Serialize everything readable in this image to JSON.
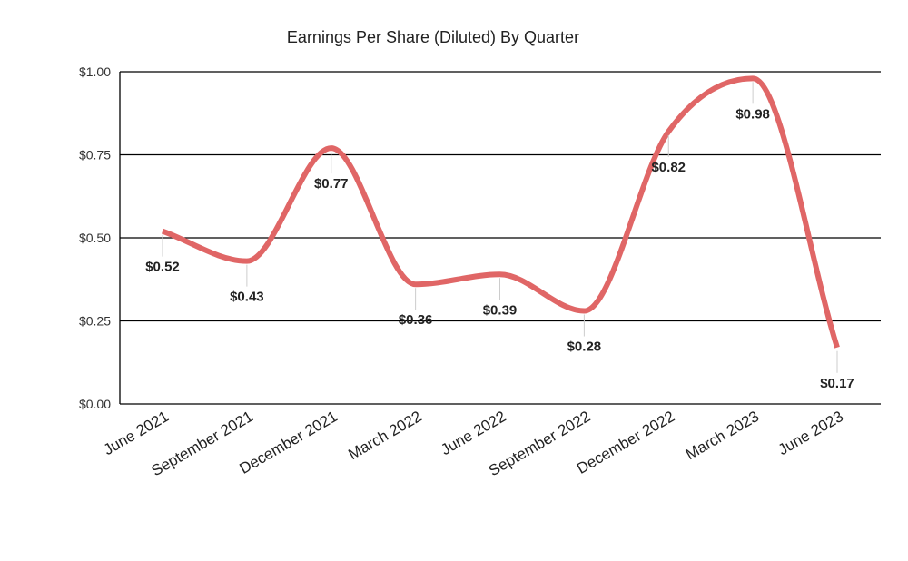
{
  "colors": {
    "series": "#e06666",
    "grid": "#000000",
    "background": "#ffffff"
  },
  "chart_data": {
    "type": "line",
    "title": "Earnings Per Share (Diluted) By Quarter",
    "xlabel": "",
    "ylabel": "",
    "categories": [
      "June 2021",
      "September 2021",
      "December 2021",
      "March 2022",
      "June 2022",
      "September 2022",
      "December 2022",
      "March 2023",
      "June 2023"
    ],
    "series": [
      {
        "values": [
          0.52,
          0.43,
          0.77,
          0.36,
          0.39,
          0.28,
          0.82,
          0.98,
          0.17
        ],
        "data_labels": [
          "$0.52",
          "$0.43",
          "$0.77",
          "$0.36",
          "$0.39",
          "$0.28",
          "$0.82",
          "$0.98",
          "$0.17"
        ]
      }
    ],
    "ylim": [
      0,
      1
    ],
    "yticks": [
      0,
      0.25,
      0.5,
      0.75,
      1.0
    ],
    "ytick_labels": [
      "$0.00",
      "$0.25",
      "$0.50",
      "$0.75",
      "$1.00"
    ],
    "smooth": true,
    "grid": true
  }
}
